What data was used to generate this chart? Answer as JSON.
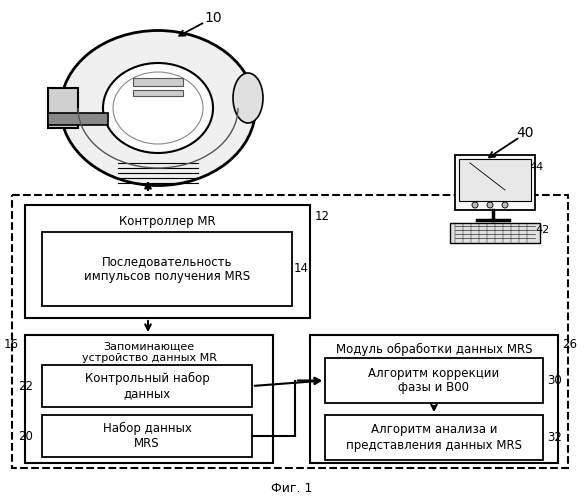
{
  "title": "Фиг. 1",
  "bg_color": "#ffffff",
  "labels": {
    "mr_controller": "Контроллер MR",
    "pulse_seq": "Последовательность\nимпульсов получения MRS",
    "mem_device": "Запоминающее\nустройство данных MR",
    "control_set": "Контрольный набор\nданных",
    "mrs_dataset": "Набор данных\nMRS",
    "mrs_module": "Модуль обработки данных MRS",
    "phase_alg": "Алгоритм коррекции\nфазы и В00",
    "analysis_alg": "Алгоритм анализа и\nпредставления данных MRS"
  },
  "numbers": {
    "n10": "10",
    "n12": "12",
    "n14": "14",
    "n16": "16",
    "n20": "20",
    "n22": "22",
    "n26": "26",
    "n30": "30",
    "n32": "32",
    "n40": "40",
    "n42": "42",
    "n44": "44"
  },
  "layout": {
    "fig_w": 5.85,
    "fig_h": 5.0,
    "dpi": 100
  }
}
